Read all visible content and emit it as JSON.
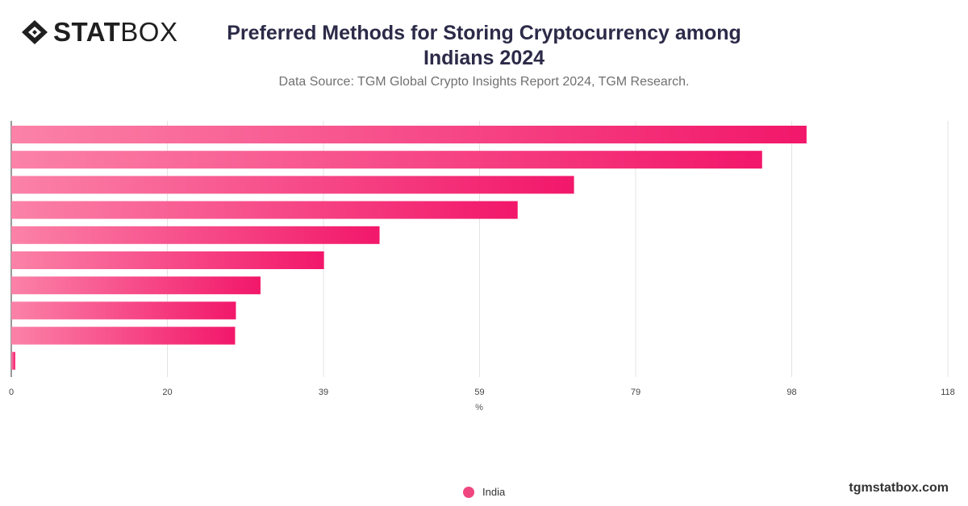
{
  "header": {
    "logo_bold": "STAT",
    "logo_light": "BOX",
    "logo_icon": "diamond-logo-icon"
  },
  "chart_data": {
    "type": "bar",
    "orientation": "horizontal",
    "title": "Preferred Methods for Storing Cryptocurrency among Indians 2024",
    "subtitle": "Data Source: TGM Global Crypto Insights Report 2024, TGM Research.",
    "xlabel": "%",
    "xlim": [
      0,
      118
    ],
    "xticks": [
      "0",
      "20",
      "39",
      "59",
      "79",
      "98",
      "118"
    ],
    "grid": true,
    "legend_position": "bottom-center",
    "colors": {
      "bar_start": "#fb82a8",
      "bar_end": "#f2176a"
    },
    "series": [
      {
        "name": "India",
        "values": [
          100.2,
          94.6,
          70.9,
          63.8,
          46.4,
          39.4,
          31.4,
          28.3,
          28.2,
          0.5
        ]
      }
    ]
  },
  "footer": {
    "brand": "tgmstatbox.com"
  }
}
